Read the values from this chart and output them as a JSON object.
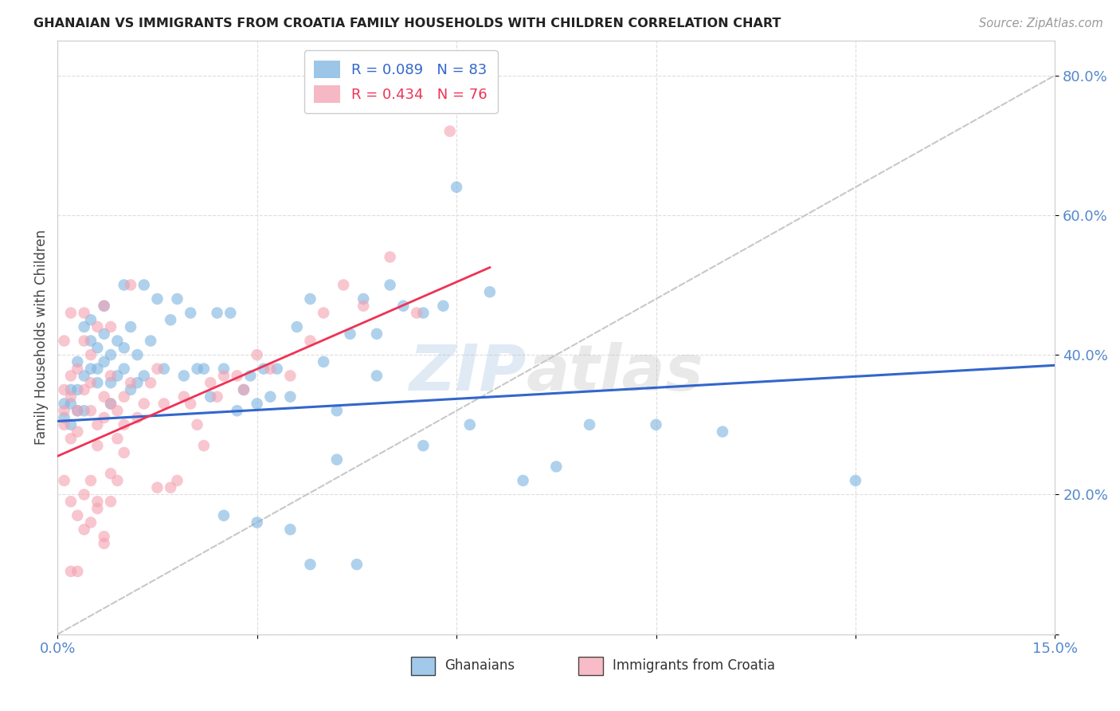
{
  "title": "GHANAIAN VS IMMIGRANTS FROM CROATIA FAMILY HOUSEHOLDS WITH CHILDREN CORRELATION CHART",
  "source": "Source: ZipAtlas.com",
  "ylabel": "Family Households with Children",
  "x_min": 0.0,
  "x_max": 0.15,
  "y_min": 0.0,
  "y_max": 0.85,
  "ghanaian_color": "#7BB3E0",
  "croatia_color": "#F4A0B0",
  "diagonal_color": "#C8C8C8",
  "trend_blue_color": "#3366CC",
  "trend_pink_color": "#EE3355",
  "background_color": "#FFFFFF",
  "tick_color": "#5588CC",
  "legend_R_blue": "R = 0.089",
  "legend_N_blue": "N = 83",
  "legend_R_pink": "R = 0.434",
  "legend_N_pink": "N = 76",
  "blue_trend_x0": 0.0,
  "blue_trend_y0": 0.305,
  "blue_trend_x1": 0.15,
  "blue_trend_y1": 0.385,
  "pink_trend_x0": 0.0,
  "pink_trend_y0": 0.255,
  "pink_trend_x1": 0.065,
  "pink_trend_y1": 0.525,
  "ghanaian_points_x": [
    0.001,
    0.001,
    0.002,
    0.002,
    0.002,
    0.003,
    0.003,
    0.003,
    0.004,
    0.004,
    0.004,
    0.005,
    0.005,
    0.005,
    0.006,
    0.006,
    0.006,
    0.007,
    0.007,
    0.007,
    0.008,
    0.008,
    0.008,
    0.009,
    0.009,
    0.01,
    0.01,
    0.01,
    0.011,
    0.011,
    0.012,
    0.012,
    0.013,
    0.013,
    0.014,
    0.015,
    0.016,
    0.017,
    0.018,
    0.019,
    0.02,
    0.021,
    0.022,
    0.023,
    0.024,
    0.025,
    0.026,
    0.027,
    0.028,
    0.029,
    0.03,
    0.031,
    0.032,
    0.033,
    0.035,
    0.036,
    0.038,
    0.04,
    0.042,
    0.044,
    0.046,
    0.048,
    0.05,
    0.055,
    0.06,
    0.065,
    0.07,
    0.075,
    0.08,
    0.09,
    0.1,
    0.12,
    0.048,
    0.058,
    0.062,
    0.045,
    0.038,
    0.052,
    0.042,
    0.055,
    0.035,
    0.03,
    0.025
  ],
  "ghanaian_points_y": [
    0.31,
    0.33,
    0.35,
    0.3,
    0.33,
    0.39,
    0.35,
    0.32,
    0.44,
    0.37,
    0.32,
    0.42,
    0.45,
    0.38,
    0.38,
    0.41,
    0.36,
    0.43,
    0.47,
    0.39,
    0.36,
    0.4,
    0.33,
    0.37,
    0.42,
    0.38,
    0.41,
    0.5,
    0.35,
    0.44,
    0.36,
    0.4,
    0.37,
    0.5,
    0.42,
    0.48,
    0.38,
    0.45,
    0.48,
    0.37,
    0.46,
    0.38,
    0.38,
    0.34,
    0.46,
    0.38,
    0.46,
    0.32,
    0.35,
    0.37,
    0.33,
    0.38,
    0.34,
    0.38,
    0.34,
    0.44,
    0.48,
    0.39,
    0.32,
    0.43,
    0.48,
    0.37,
    0.5,
    0.46,
    0.64,
    0.49,
    0.22,
    0.24,
    0.3,
    0.3,
    0.29,
    0.22,
    0.43,
    0.47,
    0.3,
    0.1,
    0.1,
    0.47,
    0.25,
    0.27,
    0.15,
    0.16,
    0.17
  ],
  "croatia_points_x": [
    0.001,
    0.001,
    0.001,
    0.001,
    0.002,
    0.002,
    0.002,
    0.002,
    0.003,
    0.003,
    0.003,
    0.004,
    0.004,
    0.004,
    0.005,
    0.005,
    0.005,
    0.006,
    0.006,
    0.006,
    0.007,
    0.007,
    0.007,
    0.008,
    0.008,
    0.008,
    0.009,
    0.009,
    0.01,
    0.01,
    0.011,
    0.011,
    0.012,
    0.013,
    0.014,
    0.015,
    0.016,
    0.017,
    0.018,
    0.019,
    0.02,
    0.021,
    0.022,
    0.023,
    0.024,
    0.025,
    0.027,
    0.028,
    0.03,
    0.032,
    0.035,
    0.038,
    0.04,
    0.043,
    0.046,
    0.05,
    0.054,
    0.059,
    0.001,
    0.002,
    0.003,
    0.004,
    0.005,
    0.006,
    0.007,
    0.008,
    0.009,
    0.01,
    0.015,
    0.002,
    0.003,
    0.004,
    0.005,
    0.006,
    0.007,
    0.008
  ],
  "croatia_points_y": [
    0.35,
    0.32,
    0.3,
    0.42,
    0.37,
    0.34,
    0.28,
    0.46,
    0.38,
    0.32,
    0.29,
    0.42,
    0.46,
    0.35,
    0.4,
    0.36,
    0.32,
    0.3,
    0.27,
    0.44,
    0.34,
    0.31,
    0.47,
    0.37,
    0.33,
    0.44,
    0.32,
    0.28,
    0.34,
    0.3,
    0.36,
    0.5,
    0.31,
    0.33,
    0.36,
    0.38,
    0.33,
    0.21,
    0.22,
    0.34,
    0.33,
    0.3,
    0.27,
    0.36,
    0.34,
    0.37,
    0.37,
    0.35,
    0.4,
    0.38,
    0.37,
    0.42,
    0.46,
    0.5,
    0.47,
    0.54,
    0.46,
    0.72,
    0.22,
    0.19,
    0.17,
    0.15,
    0.16,
    0.18,
    0.13,
    0.23,
    0.22,
    0.26,
    0.21,
    0.09,
    0.09,
    0.2,
    0.22,
    0.19,
    0.14,
    0.19
  ]
}
